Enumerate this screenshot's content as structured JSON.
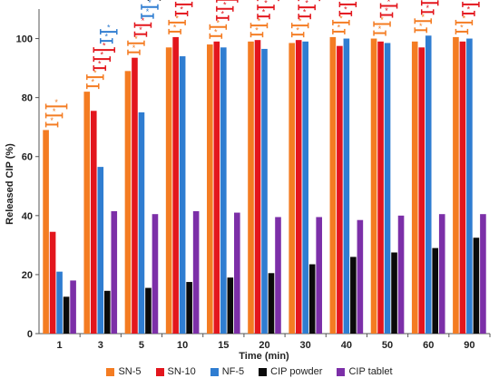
{
  "chart_data": {
    "type": "bar",
    "title": "",
    "xlabel": "Time (min)",
    "ylabel": "Released CIP (%)",
    "ylim": [
      0,
      110
    ],
    "yticks": [
      "0",
      "20",
      "40",
      "60",
      "80",
      "100"
    ],
    "grid": false,
    "legend_position": "bottom",
    "categories": [
      "1",
      "3",
      "5",
      "10",
      "15",
      "20",
      "30",
      "40",
      "50",
      "60",
      "90"
    ],
    "series": [
      {
        "name": "SN-5",
        "color": "#f47c22",
        "values": [
          69,
          82,
          89,
          97,
          98,
          99,
          98.5,
          100.5,
          100,
          99,
          100.5
        ]
      },
      {
        "name": "SN-10",
        "color": "#e3161d",
        "values": [
          34.5,
          75.5,
          93.5,
          100.5,
          99,
          99.5,
          99.5,
          97.5,
          99,
          97,
          99
        ]
      },
      {
        "name": "NF-5",
        "color": "#2f7dd1",
        "values": [
          21,
          56.5,
          75,
          94,
          97,
          96.5,
          99,
          100,
          98.5,
          101,
          100
        ]
      },
      {
        "name": "CIP powder",
        "color": "#0a0a0a",
        "values": [
          12.5,
          14.5,
          15.5,
          17.5,
          19,
          20.5,
          23.5,
          26,
          27.5,
          29,
          32.5
        ]
      },
      {
        "name": "CIP tablet",
        "color": "#7c2fa8",
        "values": [
          18,
          41.5,
          40.5,
          41.5,
          41,
          39.5,
          39.5,
          38.5,
          40,
          40.5,
          40.5
        ]
      }
    ],
    "significance_marker": "*",
    "significance_brackets": [
      {
        "category": "1",
        "color": "#f47c22",
        "count": 3
      },
      {
        "category": "3",
        "color": "#f47c22",
        "count": 2
      },
      {
        "category": "3",
        "color": "#e3161d",
        "count": 3
      },
      {
        "category": "3",
        "color": "#2f7dd1",
        "count": 2
      },
      {
        "category": "5",
        "color": "#f47c22",
        "count": 2
      },
      {
        "category": "5",
        "color": "#e3161d",
        "count": 2
      },
      {
        "category": "5",
        "color": "#2f7dd1",
        "count": 2
      },
      {
        "category": "5",
        "color": "#0a0a0a",
        "count": 1
      },
      {
        "category": "10",
        "color": "#f47c22",
        "count": 2
      },
      {
        "category": "10",
        "color": "#e3161d",
        "count": 3
      },
      {
        "category": "10",
        "color": "#2f7dd1",
        "count": 2
      },
      {
        "category": "10",
        "color": "#0a0a0a",
        "count": 1
      },
      {
        "category": "15",
        "color": "#f47c22",
        "count": 2
      },
      {
        "category": "15",
        "color": "#e3161d",
        "count": 3
      },
      {
        "category": "15",
        "color": "#2f7dd1",
        "count": 2
      },
      {
        "category": "15",
        "color": "#0a0a0a",
        "count": 1
      },
      {
        "category": "20",
        "color": "#f47c22",
        "count": 2
      },
      {
        "category": "20",
        "color": "#e3161d",
        "count": 3
      },
      {
        "category": "20",
        "color": "#2f7dd1",
        "count": 2
      },
      {
        "category": "20",
        "color": "#0a0a0a",
        "count": 1
      },
      {
        "category": "30",
        "color": "#f47c22",
        "count": 2
      },
      {
        "category": "30",
        "color": "#e3161d",
        "count": 3
      },
      {
        "category": "30",
        "color": "#2f7dd1",
        "count": 2
      },
      {
        "category": "30",
        "color": "#0a0a0a",
        "count": 1
      },
      {
        "category": "40",
        "color": "#f47c22",
        "count": 2
      },
      {
        "category": "40",
        "color": "#e3161d",
        "count": 3
      },
      {
        "category": "40",
        "color": "#2f7dd1",
        "count": 2
      },
      {
        "category": "50",
        "color": "#f47c22",
        "count": 2
      },
      {
        "category": "50",
        "color": "#e3161d",
        "count": 3
      },
      {
        "category": "50",
        "color": "#2f7dd1",
        "count": 2
      },
      {
        "category": "60",
        "color": "#f47c22",
        "count": 2
      },
      {
        "category": "60",
        "color": "#e3161d",
        "count": 3
      },
      {
        "category": "60",
        "color": "#2f7dd1",
        "count": 2
      },
      {
        "category": "90",
        "color": "#f47c22",
        "count": 2
      },
      {
        "category": "90",
        "color": "#e3161d",
        "count": 3
      },
      {
        "category": "90",
        "color": "#2f7dd1",
        "count": 2
      }
    ]
  }
}
